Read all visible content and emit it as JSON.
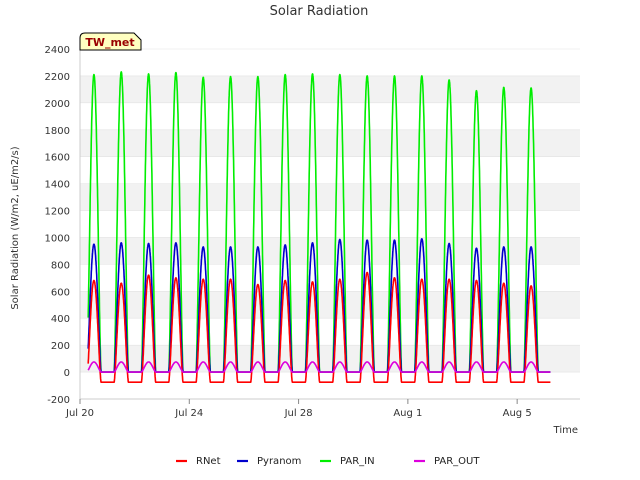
{
  "chart_data": {
    "type": "line",
    "title": "Solar Radiation",
    "xlabel": "Time",
    "ylabel": "Solar Radiation (W/m2, uE/m2/s)",
    "ylim": [
      -200,
      2400
    ],
    "yticks": [
      -200,
      0,
      200,
      400,
      600,
      800,
      1000,
      1200,
      1400,
      1600,
      1800,
      2000,
      2200,
      2400
    ],
    "xlim_days": [
      0,
      18.3
    ],
    "xticks": [
      {
        "day": 0,
        "label": "Jul 20"
      },
      {
        "day": 4,
        "label": "Jul 24"
      },
      {
        "day": 8,
        "label": "Jul 28"
      },
      {
        "day": 12,
        "label": "Aug 1"
      },
      {
        "day": 16,
        "label": "Aug 5"
      }
    ],
    "grid": "horizontal bands",
    "legend_position": "bottom",
    "station_label": "TW_met",
    "day_start": 0.3,
    "day_count": 17,
    "series": [
      {
        "name": "RNet",
        "color": "#ff0000",
        "night": -75,
        "peaks": [
          680,
          660,
          720,
          700,
          690,
          690,
          650,
          680,
          670,
          690,
          740,
          700,
          690,
          690,
          680,
          660,
          640
        ]
      },
      {
        "name": "Pyranom",
        "color": "#0000cc",
        "night": 0,
        "peaks": [
          950,
          960,
          955,
          960,
          930,
          930,
          930,
          945,
          960,
          985,
          980,
          980,
          990,
          955,
          920,
          930,
          930
        ]
      },
      {
        "name": "PAR_IN",
        "color": "#00ee00",
        "night": 0,
        "peaks": [
          2210,
          2230,
          2215,
          2225,
          2190,
          2195,
          2195,
          2210,
          2215,
          2210,
          2200,
          2200,
          2200,
          2170,
          2090,
          2115,
          2110
        ]
      },
      {
        "name": "PAR_OUT",
        "color": "#dd00dd",
        "night": 0,
        "peaks": [
          75,
          75,
          75,
          75,
          75,
          75,
          75,
          75,
          75,
          75,
          75,
          75,
          75,
          75,
          75,
          75,
          75
        ]
      }
    ]
  }
}
